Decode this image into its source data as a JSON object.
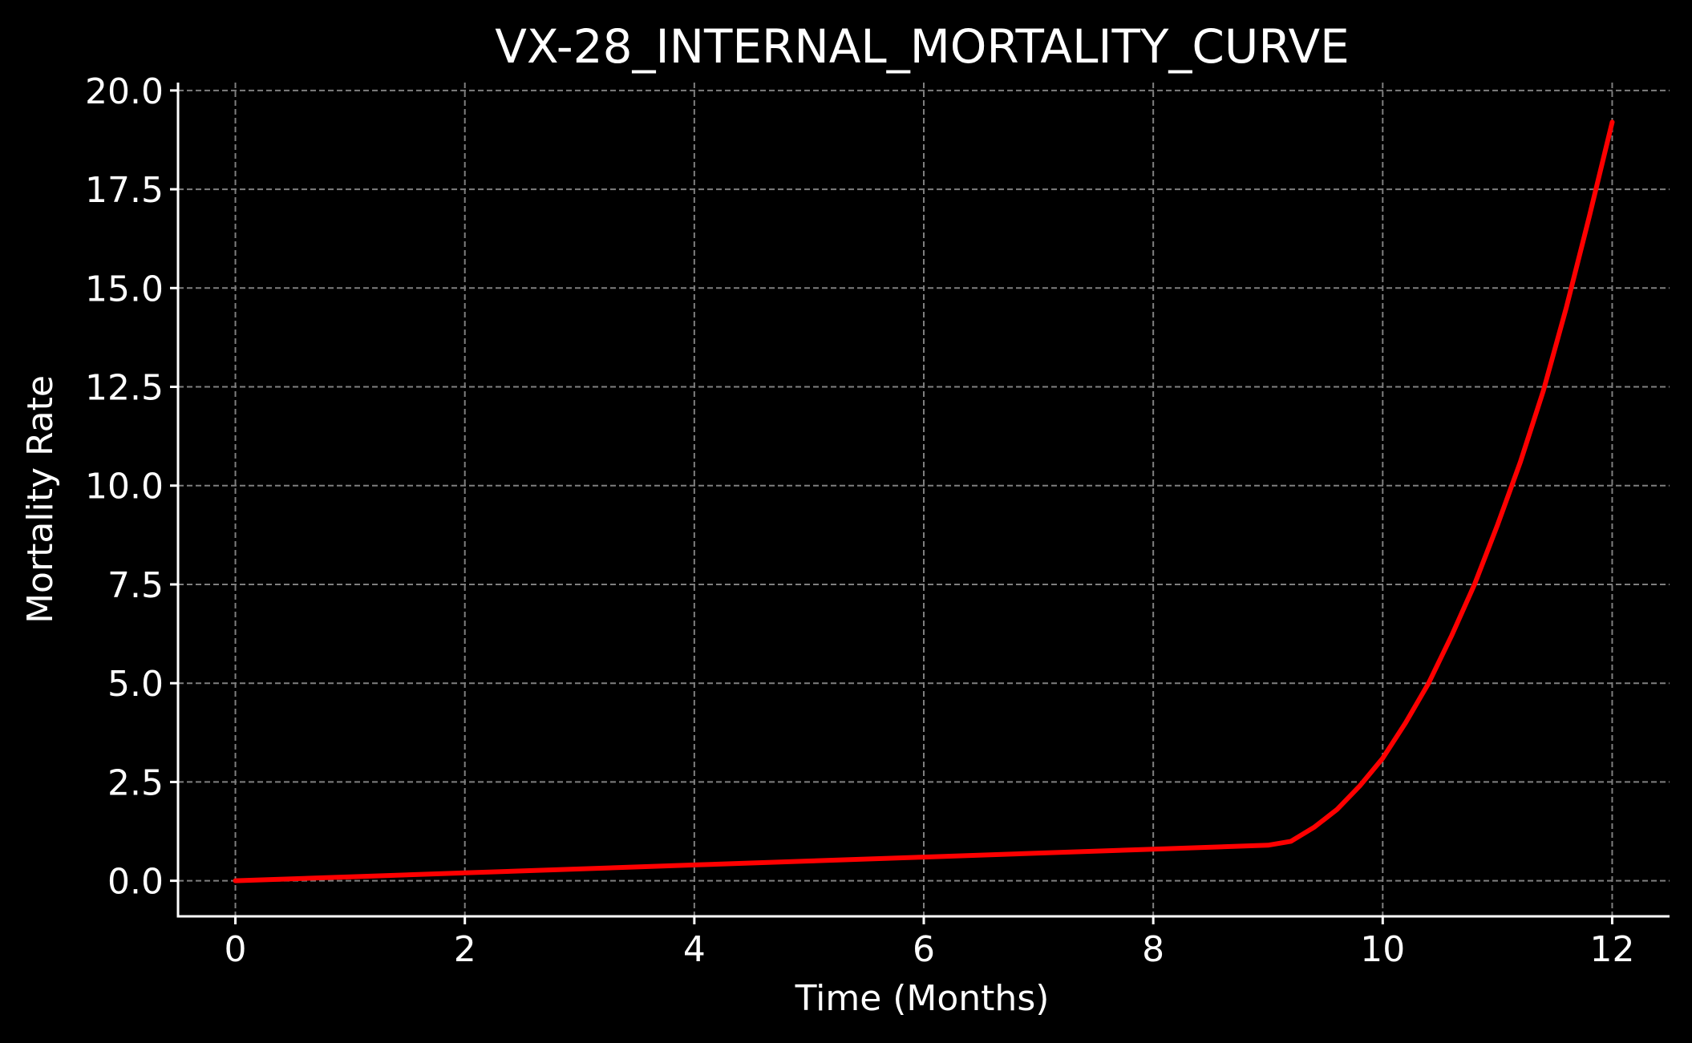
{
  "chart_data": {
    "type": "line",
    "title": "VX-28_INTERNAL_MORTALITY_CURVE",
    "xlabel": "Time (Months)",
    "ylabel": "Mortality Rate",
    "xlim": [
      -0.5,
      12.5
    ],
    "ylim": [
      -0.9,
      20.2
    ],
    "xticks": [
      0,
      2,
      4,
      6,
      8,
      10,
      12
    ],
    "xtick_labels": [
      "0",
      "2",
      "4",
      "6",
      "8",
      "10",
      "12"
    ],
    "yticks": [
      0.0,
      2.5,
      5.0,
      7.5,
      10.0,
      12.5,
      15.0,
      17.5,
      20.0
    ],
    "ytick_labels": [
      "0.0",
      "2.5",
      "5.0",
      "7.5",
      "10.0",
      "12.5",
      "15.0",
      "17.5",
      "20.0"
    ],
    "grid": true,
    "background_color": "#000000",
    "text_color": "#ffffff",
    "grid_color": "#7f7f7f",
    "series": [
      {
        "color": "#ff0000",
        "x": [
          0,
          1,
          2,
          3,
          4,
          5,
          6,
          7,
          8,
          9,
          9.2,
          9.4,
          9.6,
          9.8,
          10,
          10.2,
          10.4,
          10.6,
          10.8,
          11,
          11.2,
          11.4,
          11.6,
          11.8,
          12
        ],
        "y": [
          0,
          0.1,
          0.2,
          0.3,
          0.4,
          0.5,
          0.6,
          0.7,
          0.8,
          0.9,
          1.0,
          1.35,
          1.8,
          2.4,
          3.1,
          4.0,
          5.0,
          6.2,
          7.5,
          9.0,
          10.6,
          12.4,
          14.5,
          16.8,
          19.2
        ]
      }
    ]
  }
}
